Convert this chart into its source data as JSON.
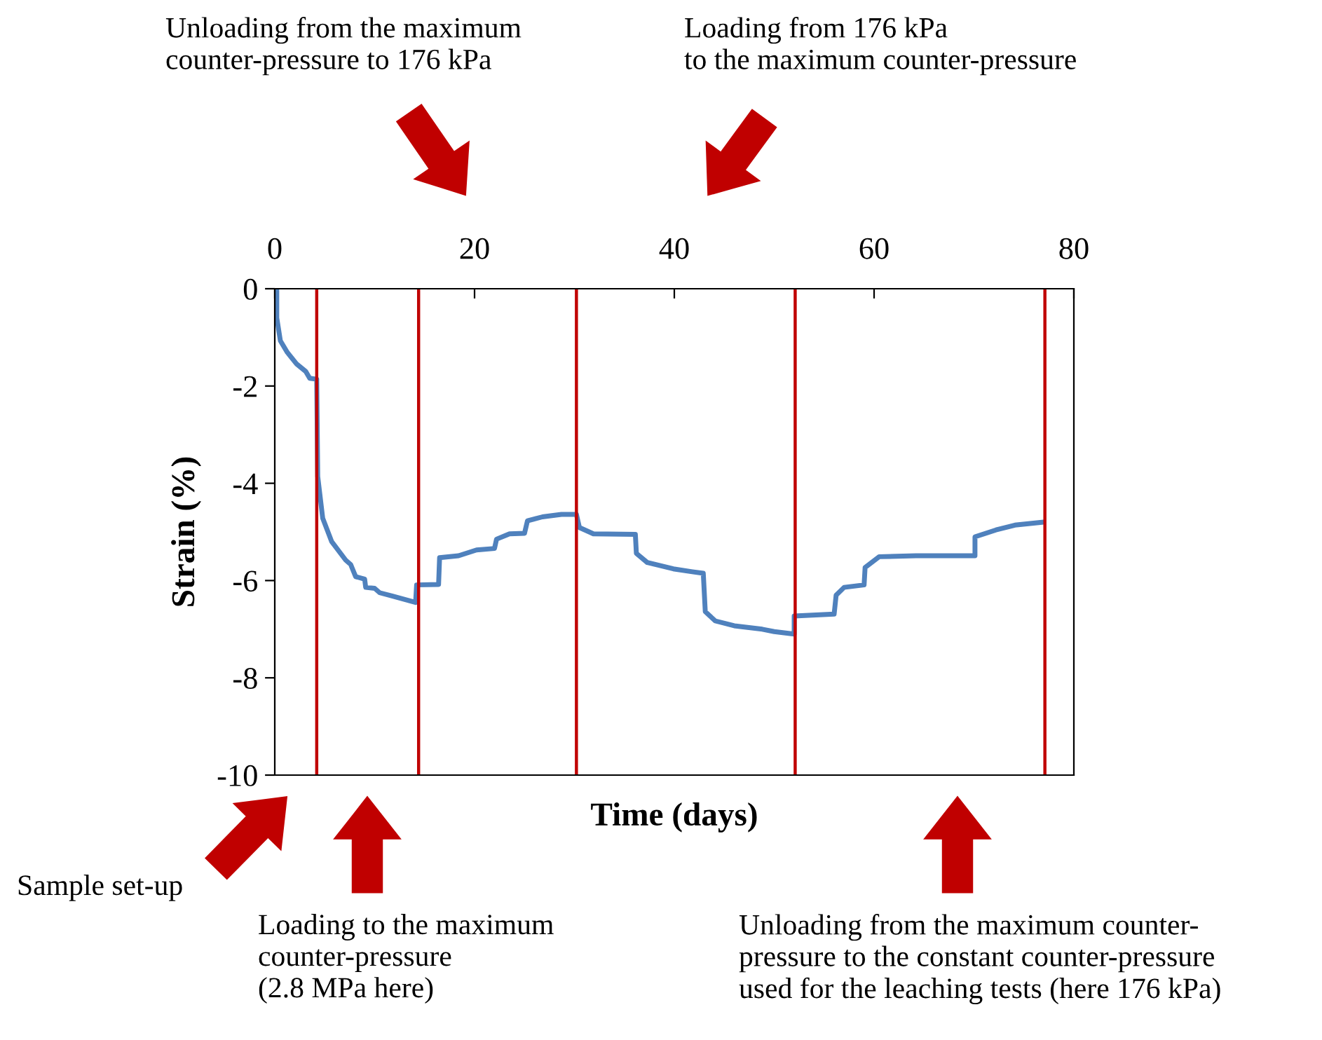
{
  "chart_data": {
    "type": "line",
    "xlabel": "Time (days)",
    "ylabel": "Strain (%)",
    "x": [
      0.2,
      0.2,
      0.56,
      1.26,
      2.2,
      3.1,
      3.5,
      4.2,
      4.3,
      4.8,
      5.7,
      7.1,
      7.6,
      8.1,
      9.0,
      9.1,
      10.0,
      10.5,
      11.8,
      14.1,
      14.2,
      16.4,
      16.5,
      18.4,
      20.2,
      22.0,
      22.2,
      23.5,
      25.0,
      25.3,
      26.8,
      28.7,
      30.2,
      30.5,
      31.9,
      36.1,
      36.2,
      37.3,
      39.9,
      41.8,
      42.9,
      43.1,
      44.1,
      46.0,
      48.8,
      50.0,
      52.0,
      52.0,
      56.0,
      56.2,
      57.0,
      59.0,
      59.1,
      60.5,
      64.2,
      70.1,
      70.1,
      72.2,
      74.1,
      76.9
    ],
    "series": [
      {
        "color": "#4f81bd",
        "values": [
          0,
          -0.6,
          -1.07,
          -1.31,
          -1.55,
          -1.7,
          -1.84,
          -1.86,
          -3.86,
          -4.72,
          -5.2,
          -5.58,
          -5.67,
          -5.92,
          -5.97,
          -6.14,
          -6.16,
          -6.25,
          -6.32,
          -6.45,
          -6.09,
          -6.08,
          -5.53,
          -5.49,
          -5.37,
          -5.34,
          -5.15,
          -5.04,
          -5.03,
          -4.77,
          -4.69,
          -4.64,
          -4.64,
          -4.91,
          -5.04,
          -5.05,
          -5.44,
          -5.63,
          -5.76,
          -5.82,
          -5.85,
          -6.64,
          -6.83,
          -6.93,
          -7.0,
          -7.05,
          -7.1,
          -6.73,
          -6.69,
          -6.3,
          -6.14,
          -6.09,
          -5.73,
          -5.51,
          -5.49,
          -5.49,
          -5.1,
          -4.96,
          -4.86,
          -4.8
        ]
      }
    ],
    "xlim": [
      0,
      80
    ],
    "xticks": [
      0,
      20,
      40,
      60,
      80
    ],
    "ylim": [
      -10,
      0
    ],
    "yticks": [
      -10,
      -8,
      -6,
      -4,
      -2,
      0
    ],
    "ref_lines": [
      {
        "axis": "x",
        "value": 4.2,
        "color": "#c00000"
      },
      {
        "axis": "x",
        "value": 14.4,
        "color": "#c00000"
      },
      {
        "axis": "x",
        "value": 30.2,
        "color": "#c00000"
      },
      {
        "axis": "x",
        "value": 52.1,
        "color": "#c00000"
      },
      {
        "axis": "x",
        "value": 77.1,
        "color": "#c00000"
      }
    ],
    "annotations": [
      "Unloading from the maximum\ncounter-pressure to 176 kPa",
      "Loading from 176 kPa\nto the maximum counter-pressure",
      "Sample set-up",
      "Loading to the maximum\ncounter-pressure\n(2.8 MPa here)",
      "Unloading from the maximum counter-\npressure to the constant counter-pressure\nused for the leaching tests (here 176 kPa)"
    ],
    "grid": false,
    "legend": false,
    "marker": "none",
    "line_style": "solid"
  }
}
